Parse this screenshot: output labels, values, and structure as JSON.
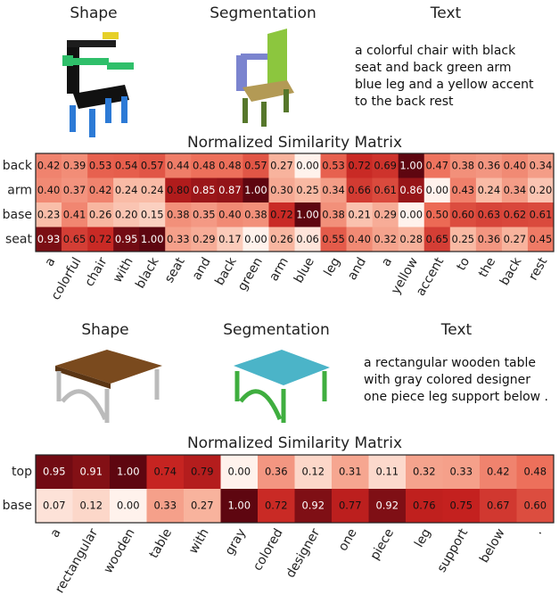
{
  "chart_data": [
    {
      "type": "heatmap",
      "title": "Normalized Similarity Matrix",
      "panel_labels": [
        "Shape",
        "Segmentation",
        "Text"
      ],
      "text": "a colorful chair with black seat and back green arm blue leg and a yellow accent to the back rest",
      "categories": [
        "a",
        "colorful",
        "chair",
        "with",
        "black",
        "seat",
        "and",
        "back",
        "green",
        "arm",
        "blue",
        "leg",
        "and",
        "a",
        "yellow",
        "accent",
        "to",
        "the",
        "back",
        "rest"
      ],
      "y_categories": [
        "back",
        "arm",
        "base",
        "seat"
      ],
      "colorscale": [
        "#fff2ec",
        "#f9b9a3",
        "#ec6a55",
        "#c4211f",
        "#5e0610"
      ],
      "values": [
        [
          0.42,
          0.39,
          0.53,
          0.54,
          0.57,
          0.44,
          0.48,
          0.48,
          0.57,
          0.27,
          0,
          0.53,
          0.72,
          0.69,
          1,
          0.47,
          0.38,
          0.36,
          0.4,
          0.34
        ],
        [
          0.4,
          0.37,
          0.42,
          0.24,
          0.24,
          0.8,
          0.85,
          0.87,
          1,
          0.3,
          0.25,
          0.34,
          0.66,
          0.61,
          0.86,
          0,
          0.43,
          0.24,
          0.34,
          0.2
        ],
        [
          0.23,
          0.41,
          0.26,
          0.2,
          0.15,
          0.38,
          0.35,
          0.4,
          0.38,
          0.72,
          1,
          0.38,
          0.21,
          0.29,
          0,
          0.5,
          0.6,
          0.63,
          0.62,
          0.61
        ],
        [
          0.93,
          0.65,
          0.72,
          0.95,
          1,
          0.33,
          0.29,
          0.17,
          0,
          0.26,
          0.06,
          0.55,
          0.4,
          0.32,
          0.28,
          0.65,
          0.25,
          0.36,
          0.27,
          0.45
        ]
      ],
      "value_labels": [
        [
          "0.42",
          "0.39",
          "0.53",
          "0.54",
          "0.57",
          "0.44",
          "0.48",
          "0.48",
          "0.57",
          "0.27",
          "0.00",
          "0.53",
          "0.72",
          "0.69",
          "1.00",
          "0.47",
          "0.38",
          "0.36",
          "0.40",
          "0.34"
        ],
        [
          "0.40",
          "0.37",
          "0.42",
          "0.24",
          "0.24",
          "0.80",
          "0.85",
          "0.87",
          "1.00",
          "0.30",
          "0.25",
          "0.34",
          "0.66",
          "0.61",
          "0.86",
          "0.00",
          "0.43",
          "0.24",
          "0.34",
          "0.20"
        ],
        [
          "0.23",
          "0.41",
          "0.26",
          "0.20",
          "0.15",
          "0.38",
          "0.35",
          "0.40",
          "0.38",
          "0.72",
          "1.00",
          "0.38",
          "0.21",
          "0.29",
          "0.00",
          "0.50",
          "0.60",
          "0.63",
          "0.62",
          "0.61"
        ],
        [
          "0.93",
          "0.65",
          "0.72",
          "0.95",
          "1.00",
          "0.33",
          "0.29",
          "0.17",
          "0.00",
          "0.26",
          "0.06",
          "0.55",
          "0.40",
          "0.32",
          "0.28",
          "0.65",
          "0.25",
          "0.36",
          "0.27",
          "0.45"
        ]
      ]
    },
    {
      "type": "heatmap",
      "title": "Normalized Similarity Matrix",
      "panel_labels": [
        "Shape",
        "Segmentation",
        "Text"
      ],
      "text": "a rectangular wooden table with gray colored designer one piece leg support below .",
      "categories": [
        "a",
        "rectangular",
        "wooden",
        "table",
        "with",
        "gray",
        "colored",
        "designer",
        "one",
        "piece",
        "leg",
        "support",
        "below",
        "."
      ],
      "y_categories": [
        "top",
        "base"
      ],
      "colorscale": [
        "#fff2ec",
        "#f9b9a3",
        "#ec6a55",
        "#c4211f",
        "#5e0610"
      ],
      "values": [
        [
          0.95,
          0.91,
          1,
          0.74,
          0.79,
          0,
          0.36,
          0.12,
          0.31,
          0.11,
          0.32,
          0.33,
          0.42,
          0.48
        ],
        [
          0.07,
          0.12,
          0,
          0.33,
          0.27,
          1,
          0.72,
          0.92,
          0.77,
          0.92,
          0.76,
          0.75,
          0.67,
          0.6
        ]
      ],
      "value_labels": [
        [
          "0.95",
          "0.91",
          "1.00",
          "0.74",
          "0.79",
          "0.00",
          "0.36",
          "0.12",
          "0.31",
          "0.11",
          "0.32",
          "0.33",
          "0.42",
          "0.48"
        ],
        [
          "0.07",
          "0.12",
          "0.00",
          "0.33",
          "0.27",
          "1.00",
          "0.72",
          "0.92",
          "0.77",
          "0.92",
          "0.76",
          "0.75",
          "0.67",
          "0.60"
        ]
      ]
    }
  ]
}
